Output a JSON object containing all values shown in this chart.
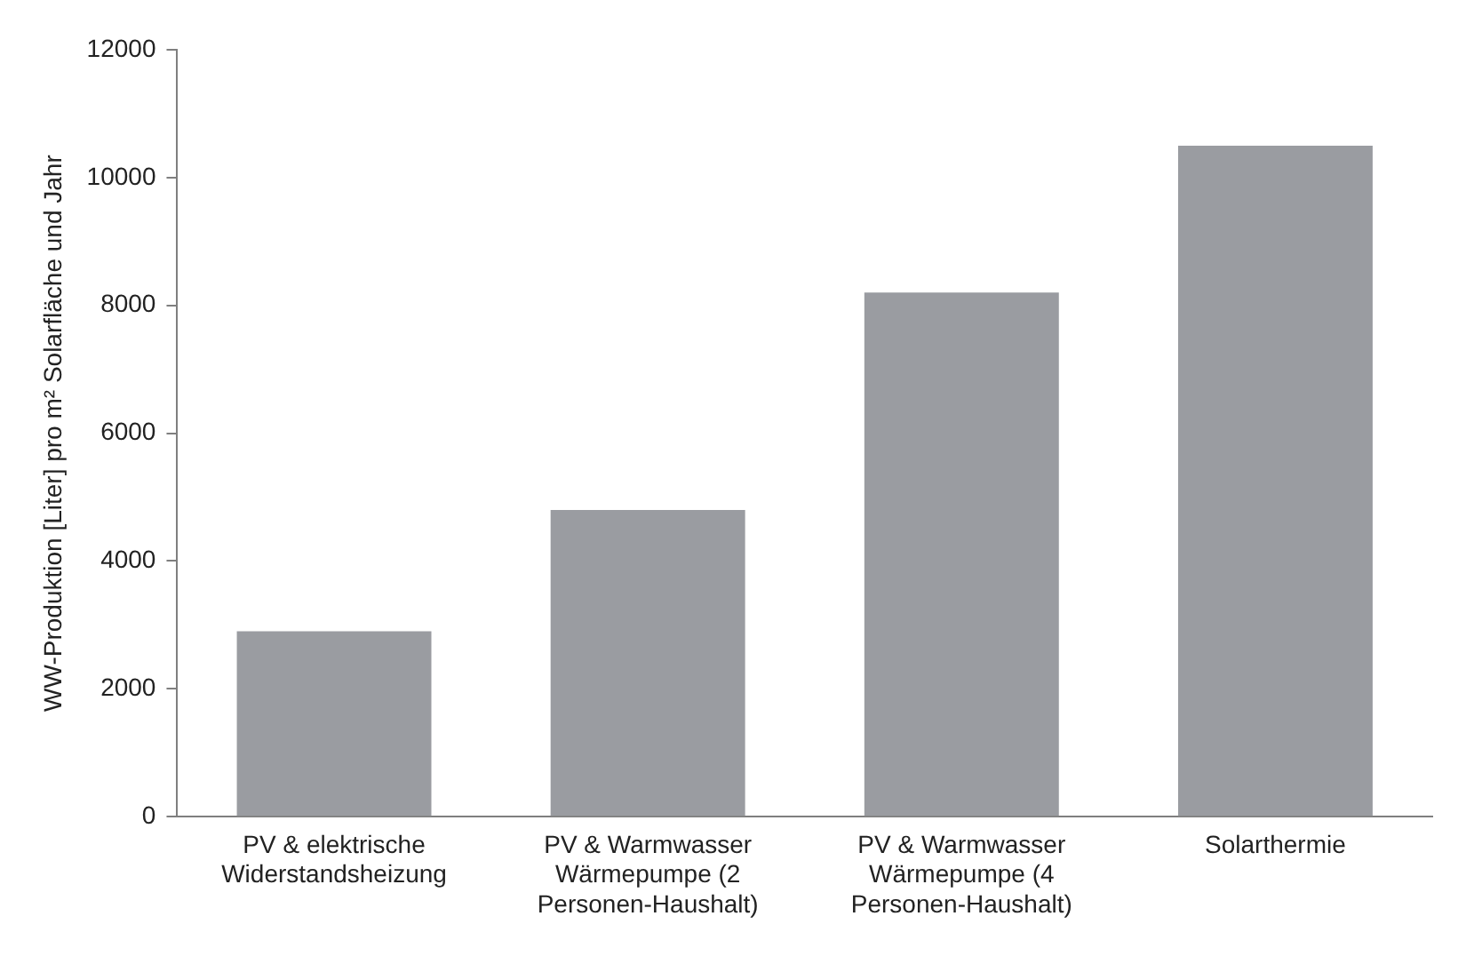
{
  "chart_data": {
    "type": "bar",
    "ylabel": "WW-Produktion [Liter] pro m² Solarfläche und Jahr",
    "categories": [
      "PV & elektrische Widerstandsheizung",
      "PV & Warmwasser Wärmepumpe (2 Personen-Haushalt)",
      "PV & Warmwasser Wärmepumpe (4 Personen-Haushalt)",
      "Solarthermie"
    ],
    "values": [
      2900,
      4800,
      8200,
      10500
    ],
    "color": "#9a9ca1",
    "ylim": [
      0,
      12000
    ],
    "yticks": [
      0,
      2000,
      4000,
      6000,
      8000,
      10000,
      12000
    ],
    "grid": false,
    "legend": false
  }
}
